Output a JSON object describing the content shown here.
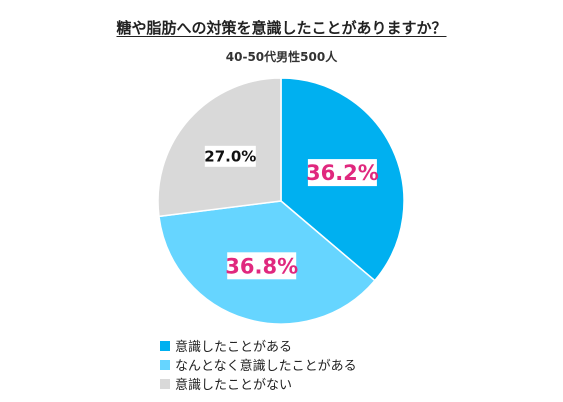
{
  "chart_data": {
    "type": "pie",
    "title": "糖や脂肪への対策を意識したことがありますか？",
    "subtitle": "40-50代男性500人",
    "categories": [
      "意識したことがある",
      "なんとなく意識したことがある",
      "意識したことがない"
    ],
    "values": [
      36.2,
      36.8,
      27.0
    ],
    "data_labels": [
      "36.2%",
      "36.8%",
      "27.0%"
    ],
    "colors": [
      "#00B0F0",
      "#66D5FF",
      "#D9D9D9"
    ],
    "label_colors": [
      "#E0287E",
      "#E0287E",
      "#111111"
    ],
    "start": "12 o'clock",
    "direction": "clockwise",
    "legend_position": "bottom-left"
  }
}
